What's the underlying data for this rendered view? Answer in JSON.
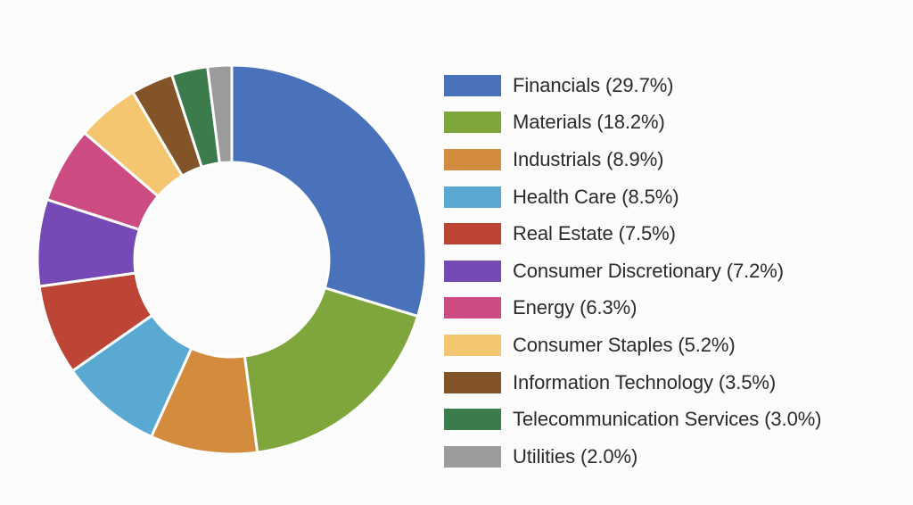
{
  "chart_data": {
    "type": "pie",
    "variant": "donut",
    "title": "",
    "legend_position": "right",
    "categories": [
      "Financials",
      "Materials",
      "Industrials",
      "Health Care",
      "Real Estate",
      "Consumer Discretionary",
      "Energy",
      "Consumer Staples",
      "Information Technology",
      "Telecommunication Services",
      "Utilities"
    ],
    "values": [
      29.7,
      18.2,
      8.9,
      8.5,
      7.5,
      7.2,
      6.3,
      5.2,
      3.5,
      3.0,
      2.0
    ],
    "legend_labels": [
      "Financials (29.7%)",
      "Materials (18.2%)",
      "Industrials (8.9%)",
      "Health Care (8.5%)",
      "Real Estate (7.5%)",
      "Consumer Discretionary (7.2%)",
      "Energy (6.3%)",
      "Consumer Staples (5.2%)",
      "Information Technology (3.5%)",
      "Telecommunication Services (3.0%)",
      "Utilities (2.0%)"
    ],
    "colors": [
      "#4a72bb",
      "#7ea63d",
      "#d38b3e",
      "#5aa9d2",
      "#bd4535",
      "#7549b6",
      "#cc4b82",
      "#f5c671",
      "#825427",
      "#3b7b4c",
      "#9b9b9b"
    ]
  }
}
